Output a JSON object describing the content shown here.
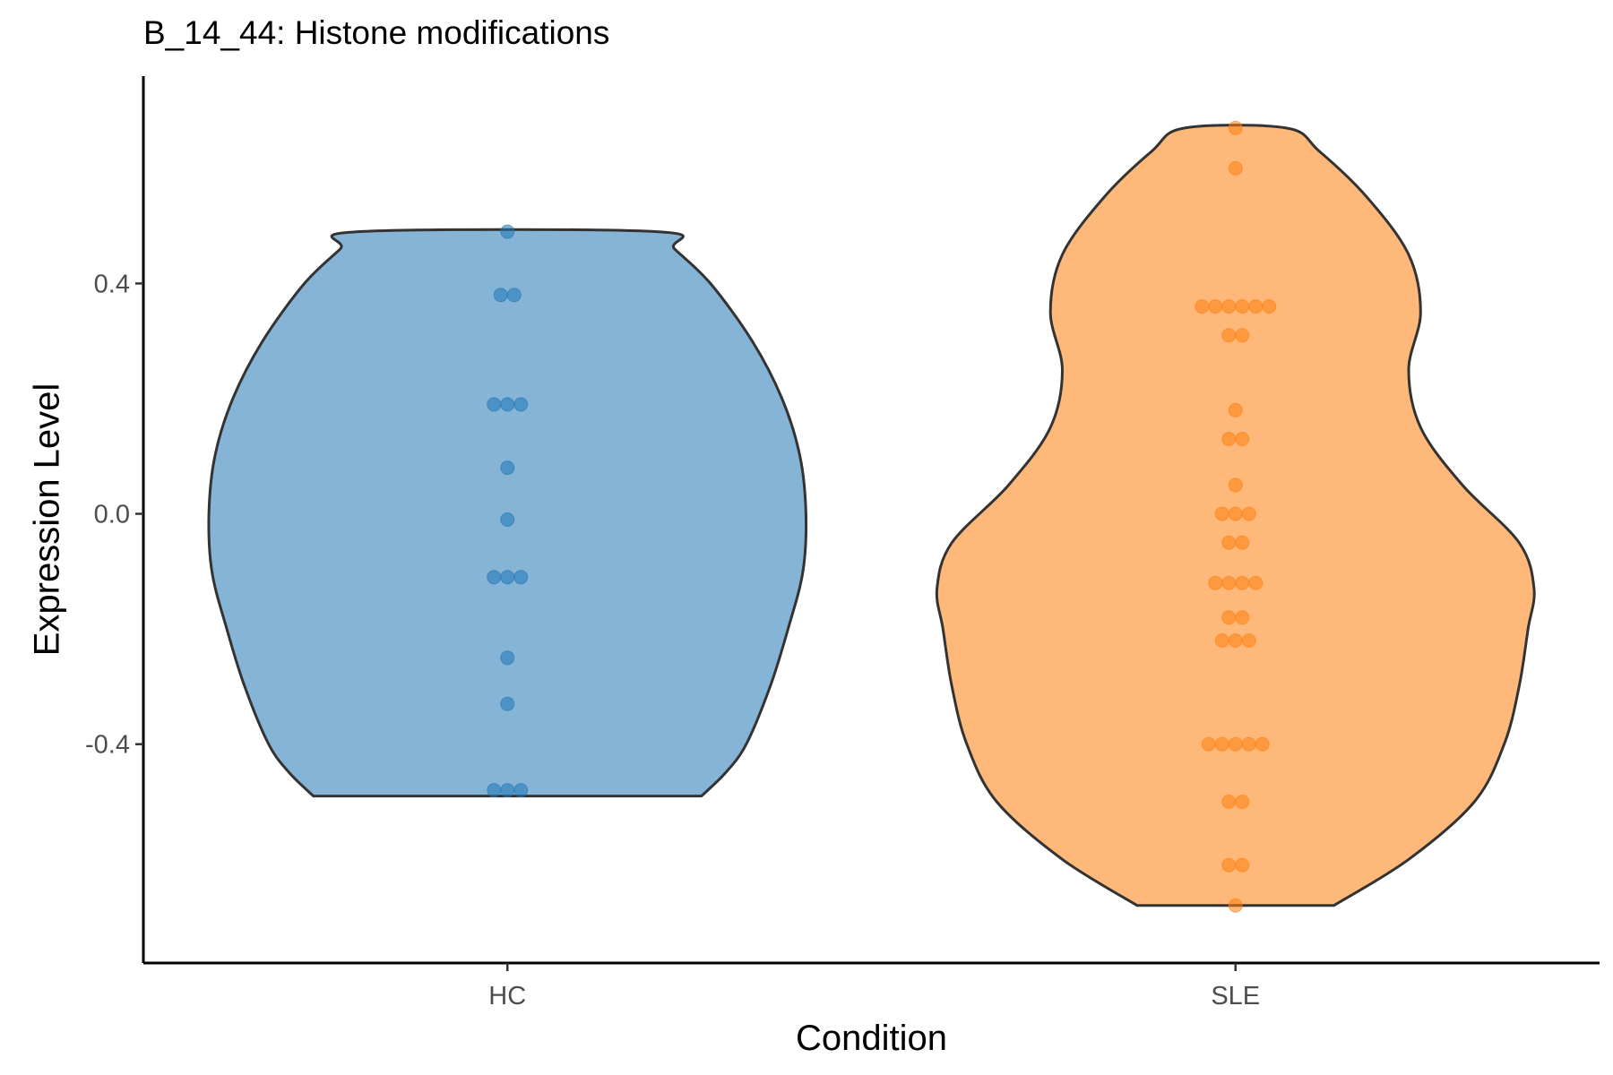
{
  "chart_data": {
    "type": "violin",
    "title": "B_14_44: Histone modifications",
    "xlabel": "Condition",
    "ylabel": "Expression Level",
    "ylim": [
      -0.78,
      0.76
    ],
    "yticks": [
      -0.4,
      0.0,
      0.4
    ],
    "ytick_labels": [
      "-0.4",
      "0.0",
      "0.4"
    ],
    "categories": [
      "HC",
      "SLE"
    ],
    "grid": false,
    "legend": "none",
    "series": [
      {
        "name": "HC",
        "color": "#1f77b4",
        "fill": "#86b4d7",
        "points": [
          0.49,
          0.38,
          0.38,
          0.19,
          0.19,
          0.19,
          0.08,
          -0.01,
          -0.11,
          -0.11,
          -0.11,
          -0.25,
          -0.33,
          -0.48,
          -0.48,
          -0.48
        ],
        "violin_profile": [
          [
            -0.49,
            0.65
          ],
          [
            -0.45,
            0.73
          ],
          [
            -0.4,
            0.8
          ],
          [
            -0.3,
            0.88
          ],
          [
            -0.2,
            0.94
          ],
          [
            -0.1,
            0.99
          ],
          [
            0.0,
            1.0
          ],
          [
            0.1,
            0.98
          ],
          [
            0.2,
            0.92
          ],
          [
            0.3,
            0.82
          ],
          [
            0.4,
            0.68
          ],
          [
            0.46,
            0.56
          ],
          [
            0.49,
            0.5
          ]
        ]
      },
      {
        "name": "SLE",
        "color": "#ff7f0e",
        "fill": "#feb87a",
        "points": [
          0.67,
          0.6,
          0.36,
          0.36,
          0.36,
          0.36,
          0.36,
          0.36,
          0.31,
          0.31,
          0.18,
          0.13,
          0.13,
          0.05,
          0.0,
          0.0,
          0.0,
          -0.05,
          -0.05,
          -0.12,
          -0.12,
          -0.12,
          -0.12,
          -0.18,
          -0.18,
          -0.22,
          -0.22,
          -0.22,
          -0.4,
          -0.4,
          -0.4,
          -0.4,
          -0.4,
          -0.5,
          -0.5,
          -0.61,
          -0.61,
          -0.68
        ],
        "violin_profile": [
          [
            -0.68,
            0.33
          ],
          [
            -0.6,
            0.58
          ],
          [
            -0.5,
            0.8
          ],
          [
            -0.4,
            0.9
          ],
          [
            -0.3,
            0.95
          ],
          [
            -0.2,
            0.98
          ],
          [
            -0.13,
            1.0
          ],
          [
            -0.05,
            0.95
          ],
          [
            0.05,
            0.76
          ],
          [
            0.15,
            0.62
          ],
          [
            0.25,
            0.58
          ],
          [
            0.35,
            0.62
          ],
          [
            0.45,
            0.58
          ],
          [
            0.55,
            0.44
          ],
          [
            0.63,
            0.28
          ],
          [
            0.67,
            0.17
          ]
        ]
      }
    ]
  }
}
